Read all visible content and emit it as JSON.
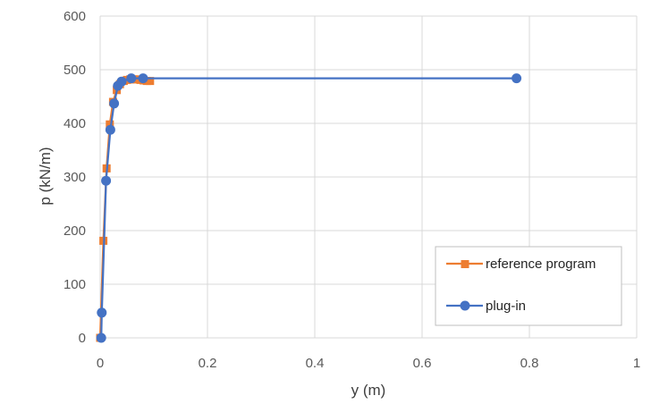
{
  "chart_data": {
    "type": "scatter",
    "title": "",
    "xlabel": "y (m)",
    "ylabel": "p (kN/m)",
    "xlim": [
      0,
      1
    ],
    "ylim": [
      0,
      600
    ],
    "xticks": [
      0,
      0.2,
      0.4,
      0.6,
      0.8,
      1
    ],
    "xtick_labels": [
      "0",
      "0.2",
      "0.4",
      "0.6",
      "0.8",
      "1"
    ],
    "yticks": [
      0,
      100,
      200,
      300,
      400,
      500,
      600
    ],
    "ytick_labels": [
      "0",
      "100",
      "200",
      "300",
      "400",
      "500",
      "600"
    ],
    "grid": true,
    "legend_position": "bottom-right",
    "series": [
      {
        "name": "reference program",
        "color": "#ED7D31",
        "marker": "square",
        "points": [
          [
            0,
            0
          ],
          [
            0.006,
            181
          ],
          [
            0.012,
            316
          ],
          [
            0.018,
            398
          ],
          [
            0.024,
            440
          ],
          [
            0.031,
            462
          ],
          [
            0.037,
            473
          ],
          [
            0.044,
            479
          ],
          [
            0.05,
            481
          ],
          [
            0.056,
            482
          ],
          [
            0.062,
            482
          ],
          [
            0.068,
            482
          ],
          [
            0.075,
            481
          ],
          [
            0.081,
            480
          ],
          [
            0.087,
            479
          ],
          [
            0.093,
            479
          ]
        ]
      },
      {
        "name": "plug-in",
        "color": "#4472C4",
        "marker": "circle",
        "points": [
          [
            0.002,
            0
          ],
          [
            0.003,
            47
          ],
          [
            0.011,
            293
          ],
          [
            0.019,
            388
          ],
          [
            0.026,
            437
          ],
          [
            0.033,
            470
          ],
          [
            0.04,
            478
          ],
          [
            0.058,
            484
          ],
          [
            0.08,
            484
          ],
          [
            0.776,
            484
          ]
        ]
      }
    ]
  }
}
